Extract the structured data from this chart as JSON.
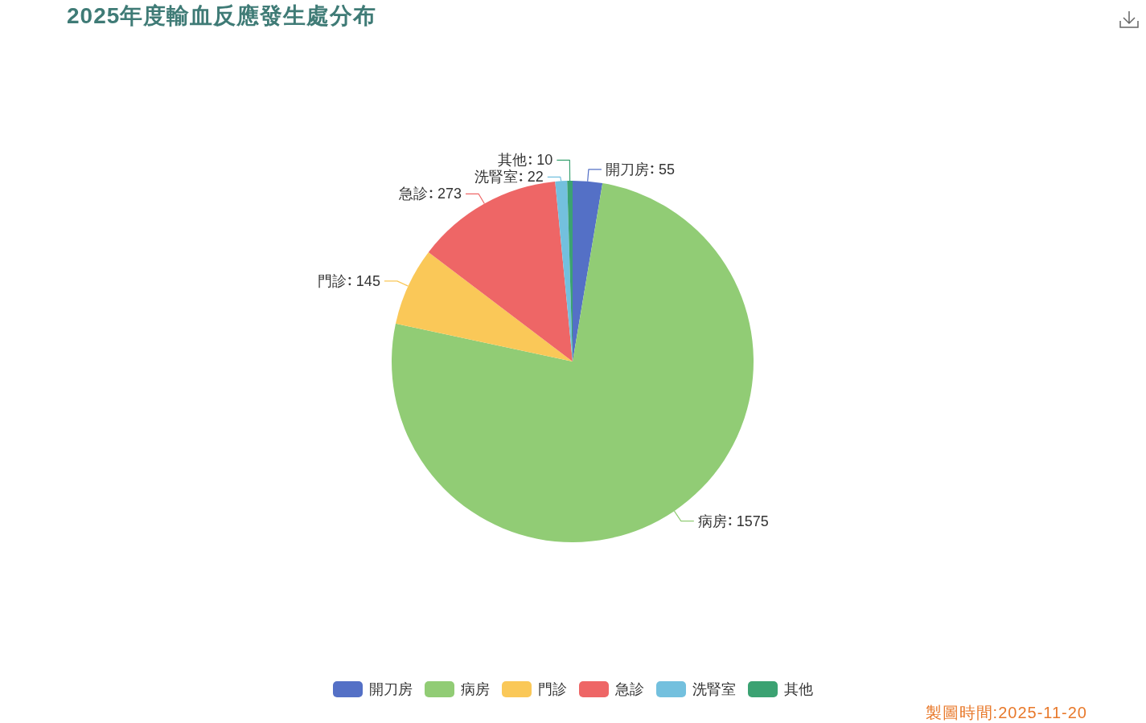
{
  "chart_data": {
    "type": "pie",
    "title": "2025年度輸血反應發生處分布",
    "categories": [
      "開刀房",
      "病房",
      "門診",
      "急診",
      "洗腎室",
      "其他"
    ],
    "values": [
      55,
      1575,
      145,
      273,
      22,
      10
    ],
    "colors": [
      "#5470c6",
      "#91cc75",
      "#fac858",
      "#ee6666",
      "#73c0de",
      "#3ba272"
    ],
    "data_labels": true,
    "legend": "bottom",
    "annotations": [
      "製圖時間:2025-11-20"
    ]
  }
}
